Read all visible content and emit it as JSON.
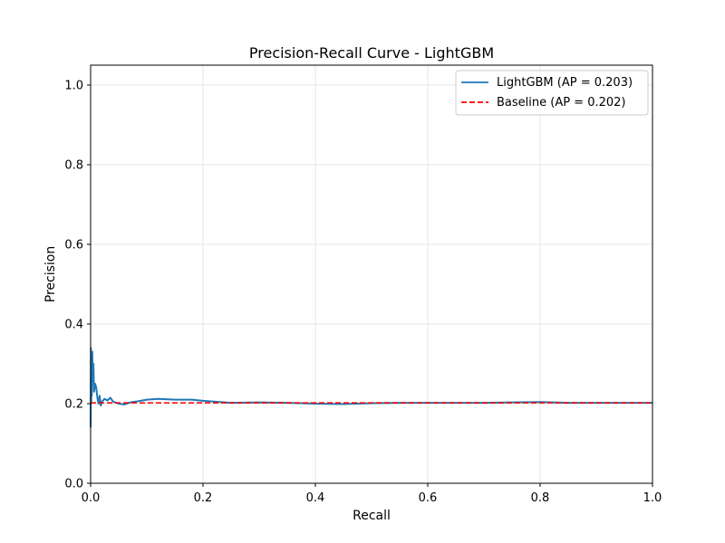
{
  "chart_data": {
    "type": "line",
    "title": "Precision-Recall Curve - LightGBM",
    "xlabel": "Recall",
    "ylabel": "Precision",
    "xlim": [
      0.0,
      1.0
    ],
    "ylim": [
      0.0,
      1.05
    ],
    "xticks": [
      "0.0",
      "0.2",
      "0.4",
      "0.6",
      "0.8",
      "1.0"
    ],
    "yticks": [
      "0.0",
      "0.2",
      "0.4",
      "0.6",
      "0.8",
      "1.0"
    ],
    "grid": true,
    "legend_position": "top-right",
    "series": [
      {
        "name": "LightGBM (AP = 0.203)",
        "color": "#1f77b4",
        "style": "solid",
        "x": [
          0.0,
          0.0005,
          0.001,
          0.0015,
          0.002,
          0.003,
          0.004,
          0.005,
          0.006,
          0.008,
          0.01,
          0.012,
          0.014,
          0.016,
          0.018,
          0.02,
          0.025,
          0.03,
          0.035,
          0.04,
          0.05,
          0.06,
          0.07,
          0.08,
          0.1,
          0.12,
          0.15,
          0.18,
          0.2,
          0.25,
          0.3,
          0.35,
          0.4,
          0.45,
          0.5,
          0.55,
          0.6,
          0.65,
          0.7,
          0.75,
          0.8,
          0.85,
          0.9,
          0.95,
          1.0
        ],
        "y": [
          0.14,
          0.34,
          0.2,
          0.32,
          0.22,
          0.33,
          0.26,
          0.3,
          0.23,
          0.25,
          0.24,
          0.215,
          0.2,
          0.22,
          0.195,
          0.205,
          0.212,
          0.208,
          0.215,
          0.205,
          0.2,
          0.198,
          0.203,
          0.205,
          0.21,
          0.212,
          0.21,
          0.21,
          0.207,
          0.202,
          0.203,
          0.202,
          0.2,
          0.199,
          0.201,
          0.202,
          0.202,
          0.202,
          0.202,
          0.203,
          0.204,
          0.202,
          0.202,
          0.202,
          0.202
        ]
      },
      {
        "name": "Baseline (AP = 0.202)",
        "color": "#ff0000",
        "style": "dashed",
        "x": [
          0.0,
          1.0
        ],
        "y": [
          0.202,
          0.202
        ]
      }
    ]
  }
}
